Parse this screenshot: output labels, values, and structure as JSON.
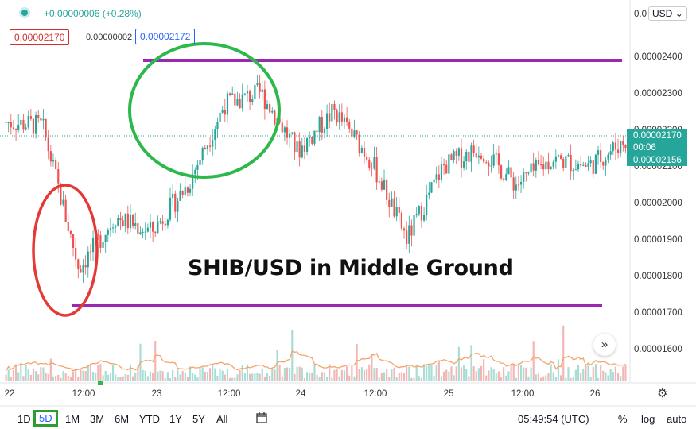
{
  "header": {
    "change": "+0.00000006 (+0.28%)",
    "bid": "0.00002170",
    "spread": "0.00000002",
    "ask": "0.00002172",
    "currency": "USD"
  },
  "annotation_title": "SHIB/USD in Middle Ground",
  "price_axis": {
    "top_partial": "0.0",
    "ticks": [
      "0.00002400",
      "0.00002300",
      "0.00002200",
      "0.00002100",
      "0.00002000",
      "0.00001900",
      "0.00001800",
      "0.00001700",
      "0.00001600"
    ],
    "last_price": "0.00002170",
    "countdown": "00:06",
    "second_label": "0.00002156",
    "label_color": "#26a69a"
  },
  "time_axis": [
    "22",
    "12:00",
    "23",
    "12:00",
    "24",
    "12:00",
    "25",
    "12:00",
    "26"
  ],
  "toolbar": {
    "ranges": [
      "1D",
      "5D",
      "1M",
      "3M",
      "6M",
      "YTD",
      "1Y",
      "5Y",
      "All"
    ],
    "active_range": "5D",
    "clock": "05:49:54 (UTC)",
    "pct": "%",
    "log": "log",
    "auto": "auto"
  },
  "colors": {
    "up": "#26a69a",
    "down": "#ef5350",
    "annot_purple": "#9c27b0",
    "annot_green": "#2db84b",
    "annot_red": "#e53935",
    "volume_ma": "#f4a46a"
  },
  "chart_data": {
    "type": "line",
    "title": "SHIB/USD in Middle Ground",
    "ylim": [
      1.57e-05,
      2.5e-05
    ],
    "x": [
      "22 00:00",
      "22 06:00",
      "22 12:00",
      "22 18:00",
      "23 00:00",
      "23 06:00",
      "23 12:00",
      "23 18:00",
      "24 00:00",
      "24 06:00",
      "24 12:00",
      "24 18:00",
      "25 00:00",
      "25 06:00",
      "25 12:00",
      "25 18:00",
      "26 00:00",
      "26 06:00"
    ],
    "series": [
      {
        "values": [
          2.22e-05,
          2.21e-05,
          1.82e-05,
          1.96e-05,
          1.92e-05,
          2.05e-05,
          2.27e-05,
          2.3e-05,
          2.14e-05,
          2.25e-05,
          2.12e-05,
          1.9e-05,
          2.1e-05,
          2.15e-05,
          2.05e-05,
          2.12e-05,
          2.1e-05,
          2.17e-05
        ]
      }
    ],
    "annotations": [
      {
        "type": "hline",
        "y": 2.37e-05,
        "color": "#9c27b0"
      },
      {
        "type": "hline",
        "y": 1.7e-05,
        "color": "#9c27b0"
      }
    ]
  }
}
